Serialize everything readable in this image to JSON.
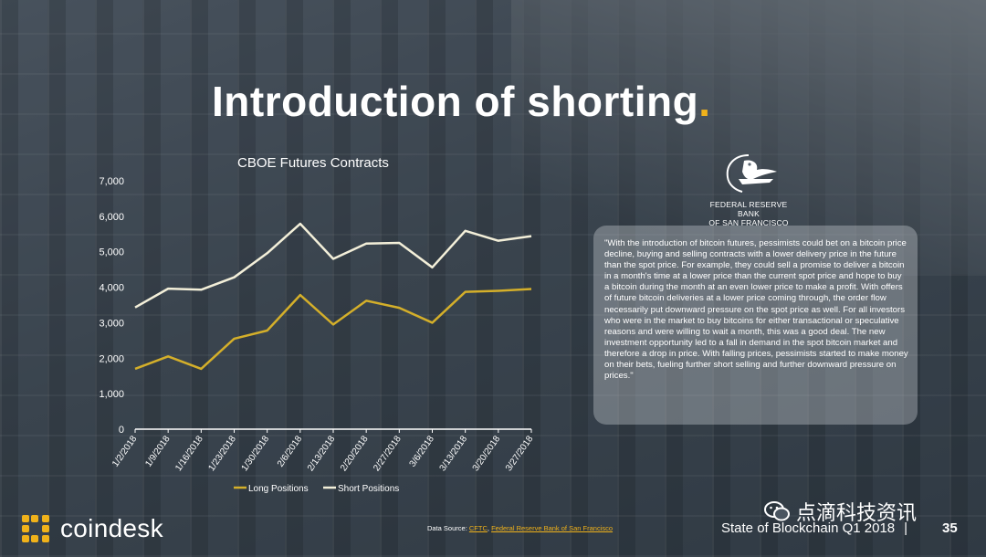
{
  "slide": {
    "title": "Introduction of shorting",
    "title_dot": ".",
    "accent_color": "#f0b21a"
  },
  "chart_data": {
    "type": "line",
    "title": "CBOE Futures Contracts",
    "categories": [
      "1/2/2018",
      "1/9/2018",
      "1/16/2018",
      "1/23/2018",
      "1/30/2018",
      "2/6/2018",
      "2/13/2018",
      "2/20/2018",
      "2/27/2018",
      "3/6/2018",
      "3/13/2018",
      "3/20/2018",
      "3/27/2018"
    ],
    "ylim": [
      0,
      7000
    ],
    "yticks": [
      "0",
      "1,000",
      "2,000",
      "3,000",
      "4,000",
      "5,000",
      "6,000",
      "7,000"
    ],
    "legend_position": "bottom",
    "series": [
      {
        "name": "Long Positions",
        "color": "#d4af2a",
        "values": [
          1700,
          2050,
          1700,
          2550,
          2780,
          3780,
          2950,
          3620,
          3420,
          3000,
          3870,
          3900,
          3950
        ]
      },
      {
        "name": "Short Positions",
        "color": "#f3efd9",
        "values": [
          3430,
          3960,
          3930,
          4280,
          4960,
          5790,
          4800,
          5230,
          5250,
          4560,
          5590,
          5310,
          5440
        ]
      }
    ]
  },
  "fed": {
    "name_line1": "FEDERAL RESERVE BANK",
    "name_line2": "OF SAN FRANCISCO",
    "icon": "eagle-icon"
  },
  "quote": "\"With the introduction of bitcoin futures, pessimists could bet on a bitcoin price decline, buying and selling contracts with a lower delivery price in the future than the spot price. For example, they could sell a promise to deliver a bitcoin in a month's time at a lower price than the current spot price and hope to buy a bitcoin during the month at an even lower price to make a profit. With offers of future bitcoin deliveries at a lower price coming through, the order flow necessarily put downward pressure on the spot price as well. For all investors who were in the market to buy bitcoins for either transactional or speculative reasons and were willing to wait a month, this was a good deal. The new investment opportunity led to a fall in demand in the spot bitcoin market and therefore a drop in price. With falling prices, pessimists started to make money on their bets, fueling further short selling and further downward pressure on prices.\"",
  "source": {
    "label": "Data Source:",
    "link1": "CFTC",
    "sep": ",",
    "link2": "Federal Reserve Bank of San Francisco"
  },
  "brand": {
    "name": "coindesk",
    "color": "#f0b21a"
  },
  "watermark": {
    "text": "点滴科技资讯",
    "icon": "wechat-icon"
  },
  "footer": {
    "report": "State of Blockchain Q1 2018",
    "separator": "|",
    "page": "35"
  }
}
